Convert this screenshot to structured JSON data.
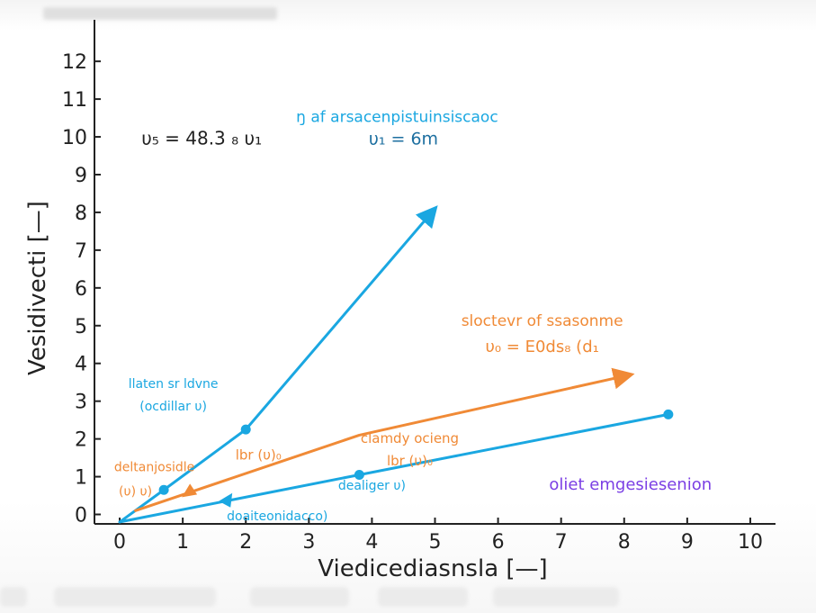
{
  "chart_data": {
    "type": "line",
    "xlabel": "Viedicediasnsla [—]",
    "ylabel": "Vesidivecti [—]",
    "xlim": [
      -0.4,
      10.4
    ],
    "ylim": [
      -0.25,
      13.1
    ],
    "xticks": [
      0,
      1,
      2,
      3,
      4,
      5,
      6,
      7,
      8,
      9,
      10
    ],
    "yticks": [
      0,
      1,
      2,
      3,
      4,
      5,
      6,
      7,
      8,
      9,
      10,
      11,
      12
    ],
    "grid": false,
    "colors": {
      "blue": "#1aa7e1",
      "orange": "#f08a36",
      "purple": "#7b3fe4",
      "dark": "#222222"
    },
    "series": [
      {
        "color": "#1aa7e1",
        "arrow": "end",
        "points": [
          [
            0,
            -0.2
          ],
          [
            0.7,
            0.65
          ],
          [
            2.0,
            2.25
          ],
          [
            5.0,
            8.1
          ]
        ],
        "markers": [
          [
            0.7,
            0.65
          ],
          [
            2.0,
            2.25
          ]
        ]
      },
      {
        "color": "#1aa7e1",
        "arrow": "none",
        "points": [
          [
            0,
            -0.2
          ],
          [
            3.8,
            1.05
          ],
          [
            8.7,
            2.65
          ]
        ],
        "markers": [
          [
            3.8,
            1.05
          ],
          [
            8.7,
            2.65
          ]
        ]
      },
      {
        "color": "#1aa7e1",
        "arrow": "mid",
        "arrow_at": [
          1.7,
          0.4
        ],
        "arrow_dir": "left",
        "points": [],
        "markers": []
      },
      {
        "color": "#f08a36",
        "arrow": "end",
        "points": [
          [
            0.25,
            0.1
          ],
          [
            3.8,
            2.1
          ],
          [
            8.1,
            3.7
          ]
        ],
        "markers": []
      },
      {
        "color": "#f08a36",
        "arrow": "mid",
        "arrow_at": [
          1.1,
          0.6
        ],
        "arrow_dir": "down-left",
        "points": [],
        "markers": []
      }
    ],
    "annotations": [
      {
        "id": "ann_top_1",
        "text": "ŋ af arsacenpistuinsiscaoc",
        "x": 4.4,
        "y": 10.4,
        "color": "#1aa7e1",
        "size": 17,
        "anchor": "middle"
      },
      {
        "id": "ann_top_2",
        "text": "υ₁ = 6m",
        "x": 4.5,
        "y": 9.8,
        "color": "#1d6fa0",
        "size": 19,
        "anchor": "middle"
      },
      {
        "id": "ann_left_eq",
        "text": "υ₅ = 48.3 ₈ υ₁",
        "x": 1.3,
        "y": 9.8,
        "color": "#222222",
        "size": 20,
        "anchor": "middle"
      },
      {
        "id": "ann_or_1",
        "text": "sloctevr of ssasonme",
        "x": 6.7,
        "y": 5.0,
        "color": "#f08a36",
        "size": 17,
        "anchor": "middle"
      },
      {
        "id": "ann_or_2",
        "text": "υ₀ = E0ds₈ (d₁",
        "x": 6.7,
        "y": 4.3,
        "color": "#f08a36",
        "size": 18,
        "anchor": "middle"
      },
      {
        "id": "ann_bl_1",
        "text": "llaten sr ldvne",
        "x": 0.85,
        "y": 3.35,
        "color": "#1aa7e1",
        "size": 14,
        "anchor": "middle"
      },
      {
        "id": "ann_bl_2",
        "text": "(ocdillar υ)",
        "x": 0.85,
        "y": 2.75,
        "color": "#1aa7e1",
        "size": 14,
        "anchor": "middle"
      },
      {
        "id": "ann_or_mid_1",
        "text": "clamdy ocieng",
        "x": 4.6,
        "y": 1.9,
        "color": "#f08a36",
        "size": 15,
        "anchor": "middle"
      },
      {
        "id": "ann_or_mid_2",
        "text": "lbr (υ)₀",
        "x": 4.6,
        "y": 1.3,
        "color": "#f08a36",
        "size": 15,
        "anchor": "middle"
      },
      {
        "id": "ann_or_lbl",
        "text": "lbr (υ)₀",
        "x": 2.2,
        "y": 1.45,
        "color": "#f08a36",
        "size": 15,
        "anchor": "middle"
      },
      {
        "id": "ann_or_left_1",
        "text": "deltanjosidle",
        "x": 0.55,
        "y": 1.15,
        "color": "#f08a36",
        "size": 14,
        "anchor": "middle"
      },
      {
        "id": "ann_or_left_2",
        "text": "(υ) υ)",
        "x": 0.25,
        "y": 0.5,
        "color": "#f08a36",
        "size": 14,
        "anchor": "middle"
      },
      {
        "id": "ann_blue_small",
        "text": "dealiger υ)",
        "x": 4.0,
        "y": 0.65,
        "color": "#1aa7e1",
        "size": 14,
        "anchor": "middle"
      },
      {
        "id": "ann_blue_bottom",
        "text": "doaiteonidacco)",
        "x": 2.5,
        "y": -0.15,
        "color": "#1aa7e1",
        "size": 14,
        "anchor": "middle"
      },
      {
        "id": "ann_purple",
        "text": "oliet emgesiesenion",
        "x": 8.1,
        "y": 0.65,
        "color": "#7b3fe4",
        "size": 18,
        "anchor": "middle"
      }
    ]
  }
}
